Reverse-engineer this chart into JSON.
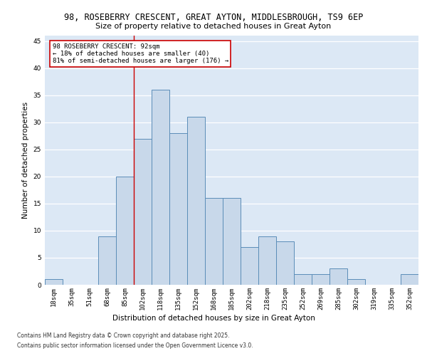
{
  "title_line1": "98, ROSEBERRY CRESCENT, GREAT AYTON, MIDDLESBROUGH, TS9 6EP",
  "title_line2": "Size of property relative to detached houses in Great Ayton",
  "xlabel": "Distribution of detached houses by size in Great Ayton",
  "ylabel": "Number of detached properties",
  "categories": [
    "18sqm",
    "35sqm",
    "51sqm",
    "68sqm",
    "85sqm",
    "102sqm",
    "118sqm",
    "135sqm",
    "152sqm",
    "168sqm",
    "185sqm",
    "202sqm",
    "218sqm",
    "235sqm",
    "252sqm",
    "269sqm",
    "285sqm",
    "302sqm",
    "319sqm",
    "335sqm",
    "352sqm"
  ],
  "values": [
    1,
    0,
    0,
    9,
    20,
    27,
    36,
    28,
    31,
    16,
    16,
    7,
    9,
    8,
    2,
    2,
    3,
    1,
    0,
    0,
    2
  ],
  "bar_color": "#c8d8ea",
  "bar_edge_color": "#5b8db8",
  "property_line_color": "#cc0000",
  "annotation_box_color": "#cc0000",
  "background_color": "#dce8f5",
  "ylim": [
    0,
    46
  ],
  "yticks": [
    0,
    5,
    10,
    15,
    20,
    25,
    30,
    35,
    40,
    45
  ],
  "footer_text": "Contains HM Land Registry data © Crown copyright and database right 2025.\nContains public sector information licensed under the Open Government Licence v3.0.",
  "title_fontsize": 8.5,
  "subtitle_fontsize": 8,
  "axis_label_fontsize": 7.5,
  "tick_fontsize": 6.5,
  "annotation_fontsize": 6.5,
  "footer_fontsize": 5.5
}
